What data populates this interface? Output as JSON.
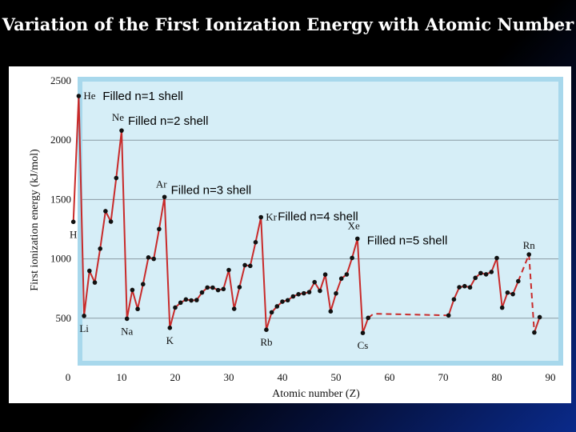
{
  "slide": {
    "title": "Variation of the First Ionization Energy with Atomic Number"
  },
  "chart_data": {
    "type": "line",
    "title": "",
    "xlabel": "Atomic number (Z)",
    "ylabel": "First ionization energy (kJ/mol)",
    "xlim": [
      0,
      90
    ],
    "ylim": [
      0,
      2500
    ],
    "xticks": [
      0,
      10,
      20,
      30,
      40,
      50,
      60,
      70,
      80,
      90
    ],
    "yticks": [
      500,
      1000,
      1500,
      2000,
      2500
    ],
    "grid_y": [
      500,
      1000,
      1500,
      2000
    ],
    "colors": {
      "line": "#c82a2a",
      "point": "#111111",
      "plot_bg": "#d6eef7",
      "frame": "#a8d8ec"
    },
    "series": [
      {
        "name": "",
        "style": "solid",
        "points": [
          [
            1,
            1312
          ],
          [
            2,
            2372
          ],
          [
            3,
            520
          ],
          [
            4,
            899
          ],
          [
            5,
            801
          ],
          [
            6,
            1086
          ],
          [
            7,
            1402
          ],
          [
            8,
            1314
          ],
          [
            9,
            1681
          ],
          [
            10,
            2081
          ],
          [
            11,
            496
          ],
          [
            12,
            738
          ],
          [
            13,
            578
          ],
          [
            14,
            787
          ],
          [
            15,
            1012
          ],
          [
            16,
            1000
          ],
          [
            17,
            1251
          ],
          [
            18,
            1521
          ],
          [
            19,
            419
          ],
          [
            20,
            590
          ],
          [
            21,
            631
          ],
          [
            22,
            658
          ],
          [
            23,
            650
          ],
          [
            24,
            653
          ],
          [
            25,
            717
          ],
          [
            26,
            759
          ],
          [
            27,
            758
          ],
          [
            28,
            737
          ],
          [
            29,
            746
          ],
          [
            30,
            906
          ],
          [
            31,
            579
          ],
          [
            32,
            762
          ],
          [
            33,
            947
          ],
          [
            34,
            941
          ],
          [
            35,
            1140
          ],
          [
            36,
            1351
          ],
          [
            37,
            403
          ],
          [
            38,
            550
          ],
          [
            39,
            600
          ],
          [
            40,
            640
          ],
          [
            41,
            652
          ],
          [
            42,
            684
          ],
          [
            43,
            702
          ],
          [
            44,
            710
          ],
          [
            45,
            720
          ],
          [
            46,
            804
          ],
          [
            47,
            731
          ],
          [
            48,
            868
          ],
          [
            49,
            558
          ],
          [
            50,
            709
          ],
          [
            51,
            834
          ],
          [
            52,
            869
          ],
          [
            53,
            1008
          ],
          [
            54,
            1170
          ],
          [
            55,
            376
          ],
          [
            56,
            503
          ]
        ]
      },
      {
        "name": "",
        "style": "dashed",
        "points": [
          [
            56,
            503
          ],
          [
            57,
            538
          ],
          [
            71,
            524
          ]
        ]
      },
      {
        "name": "",
        "style": "solid",
        "points": [
          [
            71,
            524
          ],
          [
            72,
            659
          ],
          [
            73,
            761
          ],
          [
            74,
            770
          ],
          [
            75,
            760
          ],
          [
            76,
            840
          ],
          [
            77,
            880
          ],
          [
            78,
            870
          ],
          [
            79,
            890
          ],
          [
            80,
            1007
          ],
          [
            81,
            589
          ],
          [
            82,
            716
          ],
          [
            83,
            703
          ],
          [
            84,
            812
          ]
        ]
      },
      {
        "name": "",
        "style": "dashed",
        "points": [
          [
            84,
            812
          ],
          [
            86,
            1037
          ],
          [
            87,
            380
          ]
        ]
      },
      {
        "name": "",
        "style": "solid",
        "points": [
          [
            87,
            380
          ],
          [
            88,
            509
          ]
        ]
      }
    ],
    "element_labels": [
      {
        "text": "He",
        "z": 2,
        "e": 2372,
        "side": "right"
      },
      {
        "text": "Ne",
        "z": 10,
        "e": 2081,
        "side": "left"
      },
      {
        "text": "Ar",
        "z": 18,
        "e": 1521,
        "side": "left"
      },
      {
        "text": "Kr",
        "z": 36,
        "e": 1351,
        "side": "right"
      },
      {
        "text": "Xe",
        "z": 54,
        "e": 1170,
        "side": "left"
      },
      {
        "text": "Rn",
        "z": 86,
        "e": 1037,
        "side": "above"
      },
      {
        "text": "H",
        "z": 1,
        "e": 1312,
        "side": "below"
      },
      {
        "text": "Li",
        "z": 3,
        "e": 520,
        "side": "below"
      },
      {
        "text": "Na",
        "z": 11,
        "e": 496,
        "side": "below"
      },
      {
        "text": "K",
        "z": 19,
        "e": 419,
        "side": "below"
      },
      {
        "text": "Rb",
        "z": 37,
        "e": 403,
        "side": "below"
      },
      {
        "text": "Cs",
        "z": 55,
        "e": 376,
        "side": "below"
      }
    ],
    "annotations": [
      {
        "text": "Filled n=1 shell",
        "z": 2,
        "e": 2372
      },
      {
        "text": "Filled n=2 shell",
        "z": 10,
        "e": 2081
      },
      {
        "text": "Filled n=3 shell",
        "z": 18,
        "e": 1521
      },
      {
        "text": "Filled n=4 shell",
        "z": 36,
        "e": 1351
      },
      {
        "text": "Filled n=5 shell",
        "z": 54,
        "e": 1170
      }
    ]
  }
}
